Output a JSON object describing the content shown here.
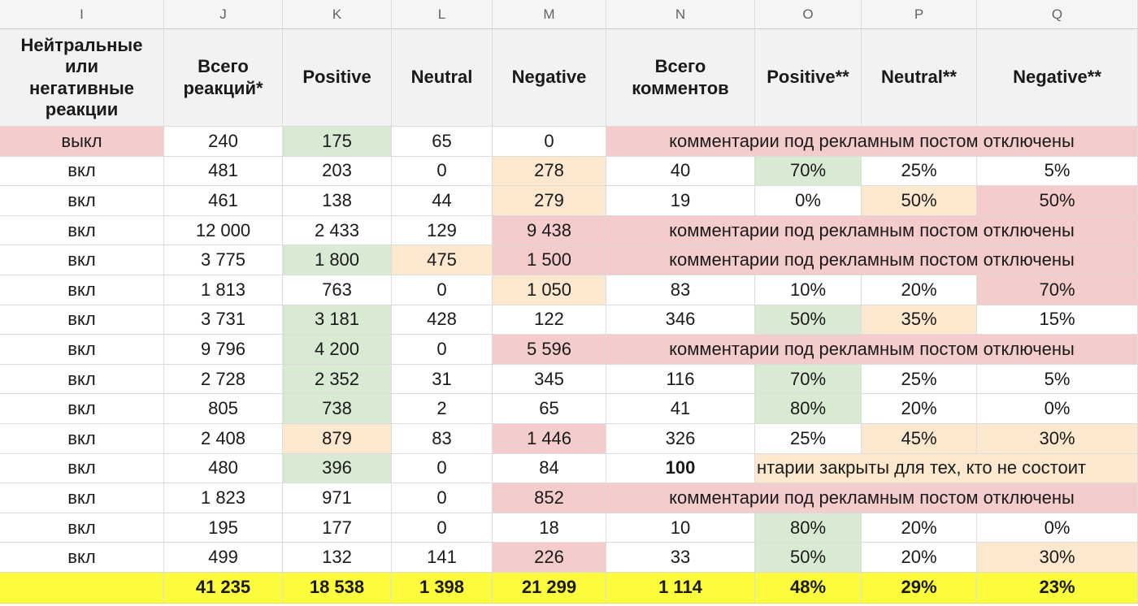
{
  "column_letters": [
    "I",
    "J",
    "K",
    "L",
    "M",
    "N",
    "O",
    "P",
    "Q"
  ],
  "headers": {
    "i": [
      "Нейтральные",
      "или",
      "негативные",
      "реакции"
    ],
    "j": [
      "Всего",
      "реакций*"
    ],
    "k": "Positive",
    "l": "Neutral",
    "m": "Negative",
    "n": [
      "Всего",
      "комментов"
    ],
    "o": "Positive**",
    "p": "Neutral**",
    "q": "Negative**"
  },
  "colors": {
    "green": "#d9ead3",
    "peach": "#fce8cf",
    "pink": "#f4cccc",
    "total_yellow": "#fcfc3c"
  },
  "rows": [
    {
      "i": "выкл",
      "j": "240",
      "k": "175",
      "l": "65",
      "m": "0",
      "merged": "комментарии под рекламным постом отключены"
    },
    {
      "i": "вкл",
      "j": "481",
      "k": "203",
      "l": "0",
      "m": "278",
      "n": "40",
      "o": "70%",
      "p": "25%",
      "q": "5%"
    },
    {
      "i": "вкл",
      "j": "461",
      "k": "138",
      "l": "44",
      "m": "279",
      "n": "19",
      "o": "0%",
      "p": "50%",
      "q": "50%"
    },
    {
      "i": "вкл",
      "j": "12 000",
      "k": "2 433",
      "l": "129",
      "m": "9 438",
      "merged": "комментарии под рекламным постом отключены"
    },
    {
      "i": "вкл",
      "j": "3 775",
      "k": "1 800",
      "l": "475",
      "m": "1 500",
      "merged": "комментарии под рекламным постом отключены"
    },
    {
      "i": "вкл",
      "j": "1 813",
      "k": "763",
      "l": "0",
      "m": "1 050",
      "n": "83",
      "o": "10%",
      "p": "20%",
      "q": "70%"
    },
    {
      "i": "вкл",
      "j": "3 731",
      "k": "3 181",
      "l": "428",
      "m": "122",
      "n": "346",
      "o": "50%",
      "p": "35%",
      "q": "15%"
    },
    {
      "i": "вкл",
      "j": "9 796",
      "k": "4 200",
      "l": "0",
      "m": "5 596",
      "merged": "комментарии под рекламным постом отключены"
    },
    {
      "i": "вкл",
      "j": "2 728",
      "k": "2 352",
      "l": "31",
      "m": "345",
      "n": "116",
      "o": "70%",
      "p": "25%",
      "q": "5%"
    },
    {
      "i": "вкл",
      "j": "805",
      "k": "738",
      "l": "2",
      "m": "65",
      "n": "41",
      "o": "80%",
      "p": "20%",
      "q": "0%"
    },
    {
      "i": "вкл",
      "j": "2 408",
      "k": "879",
      "l": "83",
      "m": "1 446",
      "n": "326",
      "o": "25%",
      "p": "45%",
      "q": "30%"
    },
    {
      "i": "вкл",
      "j": "480",
      "k": "396",
      "l": "0",
      "m": "84",
      "n": "100",
      "overflow": "нтарии закрыты для тех, кто не состоит"
    },
    {
      "i": "вкл",
      "j": "1 823",
      "k": "971",
      "l": "0",
      "m": "852",
      "merged": "комментарии под рекламным постом отключены"
    },
    {
      "i": "вкл",
      "j": "195",
      "k": "177",
      "l": "0",
      "m": "18",
      "n": "10",
      "o": "80%",
      "p": "20%",
      "q": "0%"
    },
    {
      "i": "вкл",
      "j": "499",
      "k": "132",
      "l": "141",
      "m": "226",
      "n": "33",
      "o": "50%",
      "p": "20%",
      "q": "30%"
    }
  ],
  "totals": {
    "i": "",
    "j": "41 235",
    "k": "18 538",
    "l": "1 398",
    "m": "21 299",
    "n": "1 114",
    "o": "48%",
    "p": "29%",
    "q": "23%"
  }
}
